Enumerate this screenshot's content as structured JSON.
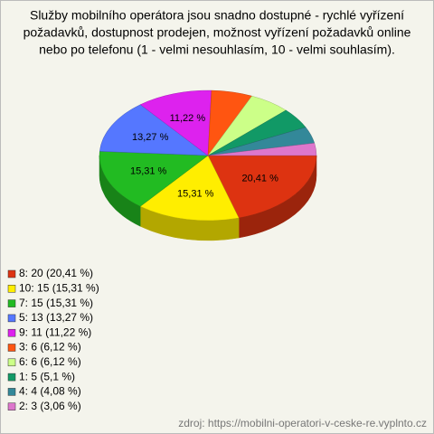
{
  "chart_data": {
    "type": "pie",
    "title": [
      "Služby mobilního operátora jsou snadno dostupné - rychlé vyřízení",
      "požadavků, dostupnost prodejen, možnost vyřízení požadavků online",
      "nebo po telefonu (1 - velmi nesouhlasím, 10 - velmi souhlasím)."
    ],
    "categories": [
      "8: 20 (20,41 %)",
      "10: 15 (15,31 %)",
      "7: 15 (15,31 %)",
      "5: 13 (13,27 %)",
      "9: 11 (11,22 %)",
      "3: 6 (6,12 %)",
      "6: 6 (6,12 %)",
      "1: 5 (5,1 %)",
      "4: 4 (4,08 %)",
      "2: 3 (3,06 %)"
    ],
    "values": [
      20.41,
      15.31,
      15.31,
      13.27,
      11.22,
      6.12,
      6.12,
      5.1,
      4.08,
      3.06
    ],
    "value_labels": [
      "20,41 %",
      "15,31 %",
      "15,31 %",
      "13,27 %",
      "11,22 %",
      null,
      null,
      null,
      null,
      null
    ],
    "colors": [
      "#dd3311",
      "#ffee00",
      "#22bb22",
      "#5577ff",
      "#dd22ee",
      "#ff5511",
      "#ccff88",
      "#119966",
      "#338899",
      "#dd77cc"
    ],
    "source": "zdroj: https://mobilni-operatori-v-ceske-re.vyplnto.cz"
  }
}
